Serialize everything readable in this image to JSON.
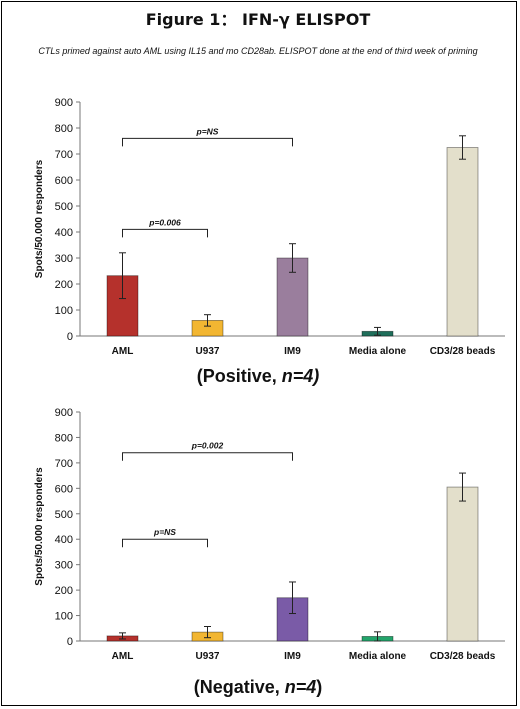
{
  "figure": {
    "title": "Figure 1： IFN-γ ELISPOT",
    "subtitle": "CTLs primed against auto AML using IL15 and mo CD28ab. ELISPOT done at the end of third week of priming"
  },
  "chart_data": [
    {
      "type": "bar",
      "caption_main": "(Positive, ",
      "caption_n": "n=4)",
      "caption_close": "",
      "ylabel": "Spots/50.000 responders",
      "ylim": [
        0,
        900
      ],
      "yticks": [
        0,
        100,
        200,
        300,
        400,
        500,
        600,
        700,
        800,
        900
      ],
      "categories": [
        "AML",
        "U937",
        "IM9",
        "Media alone",
        "CD3/28 beads"
      ],
      "values": [
        232,
        60,
        300,
        18,
        725
      ],
      "errors": [
        88,
        22,
        55,
        15,
        45
      ],
      "colors": [
        "#b5312c",
        "#f2b632",
        "#9a7e9d",
        "#1f6e5a",
        "#e3dfcb"
      ],
      "annotations": [
        {
          "from": 0,
          "to": 1,
          "y": 410,
          "label": "p=0.006"
        },
        {
          "from": 0,
          "to": 2,
          "y": 760,
          "label": "p=NS"
        }
      ]
    },
    {
      "type": "bar",
      "caption_main": "(Negative, ",
      "caption_n": "n=4",
      "caption_close": ")",
      "ylabel": "Spots/50.000 responders",
      "ylim": [
        0,
        900
      ],
      "yticks": [
        0,
        100,
        200,
        300,
        400,
        500,
        600,
        700,
        800,
        900
      ],
      "categories": [
        "AML",
        "U937",
        "IM9",
        "Media alone",
        "CD3/28 beads"
      ],
      "values": [
        20,
        35,
        170,
        18,
        605
      ],
      "errors": [
        12,
        22,
        62,
        18,
        55
      ],
      "colors": [
        "#b5312c",
        "#f2b632",
        "#7a5ba7",
        "#23a56b",
        "#e3dfcb"
      ],
      "annotations": [
        {
          "from": 0,
          "to": 1,
          "y": 400,
          "label": "p=NS"
        },
        {
          "from": 0,
          "to": 2,
          "y": 740,
          "label": "p=0.002"
        }
      ]
    }
  ]
}
